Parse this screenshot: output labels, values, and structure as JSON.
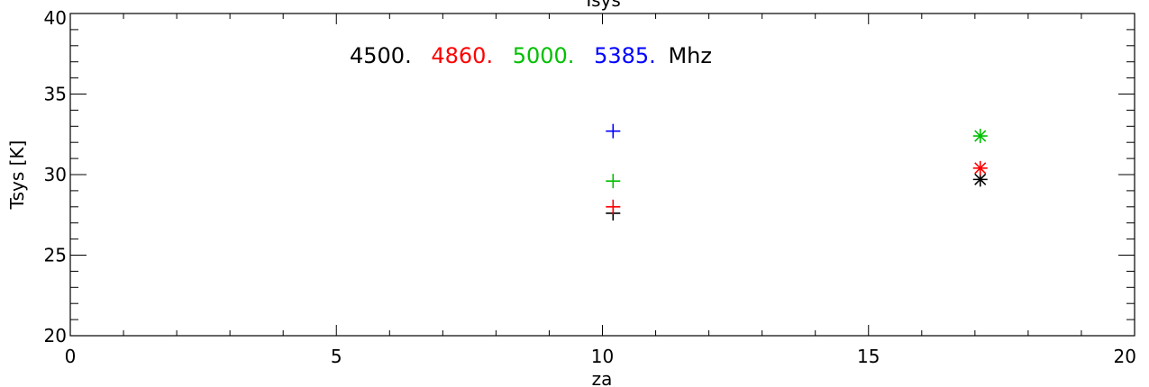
{
  "chart_data": {
    "type": "scatter",
    "title": "Tsys",
    "xlabel": "za",
    "ylabel": "Tsys [K]",
    "xlim": [
      0,
      20
    ],
    "ylim": [
      20,
      40
    ],
    "x_major_ticks": [
      0,
      5,
      10,
      15,
      20
    ],
    "y_major_ticks": [
      20,
      25,
      30,
      35,
      40
    ],
    "x_tick_labels": [
      "0",
      "5",
      "10",
      "15",
      "20"
    ],
    "y_tick_labels": [
      "20",
      "25",
      "30",
      "35",
      "40"
    ],
    "legend_entries": [
      {
        "label": "4500.",
        "color": "#000000"
      },
      {
        "label": "4860.",
        "color": "#ff0000"
      },
      {
        "label": "5000.",
        "color": "#00c000"
      },
      {
        "label": "5385.",
        "color": "#0000ff"
      }
    ],
    "legend_unit": "Mhz",
    "legend_placement": "top-left",
    "series": [
      {
        "color": "#000000",
        "points": [
          {
            "x": 10.2,
            "y": 27.6,
            "marker": "plus"
          },
          {
            "x": 17.1,
            "y": 29.7,
            "marker": "asterisk"
          }
        ]
      },
      {
        "color": "#ff0000",
        "points": [
          {
            "x": 10.2,
            "y": 28.0,
            "marker": "plus"
          },
          {
            "x": 17.1,
            "y": 30.4,
            "marker": "asterisk"
          }
        ]
      },
      {
        "color": "#00c000",
        "points": [
          {
            "x": 10.2,
            "y": 29.6,
            "marker": "plus"
          },
          {
            "x": 17.1,
            "y": 32.4,
            "marker": "asterisk"
          }
        ]
      },
      {
        "color": "#0000ff",
        "points": [
          {
            "x": 10.2,
            "y": 32.7,
            "marker": "plus"
          }
        ]
      }
    ]
  }
}
